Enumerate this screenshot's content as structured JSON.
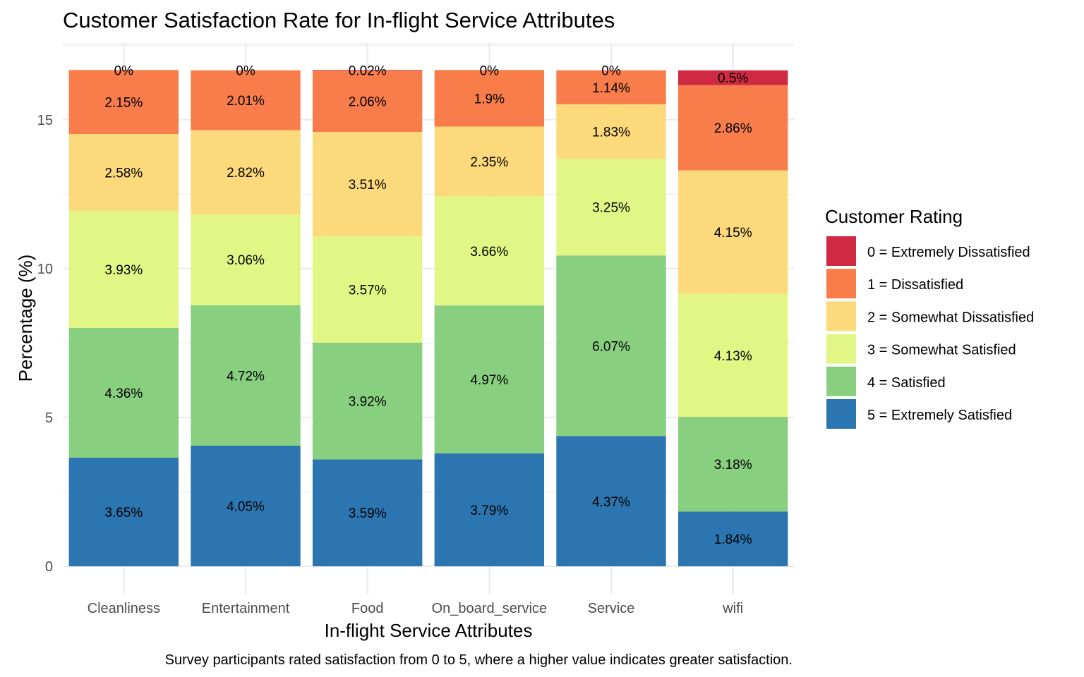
{
  "chart_data": {
    "type": "bar",
    "stacked": true,
    "title": "Customer Satisfaction Rate for In-flight Service Attributes",
    "xlabel": "In-flight Service Attributes",
    "ylabel": "Percentage (%)",
    "caption": "Survey participants rated satisfaction from 0 to 5, where a higher value indicates greater satisfaction.",
    "ylim": [
      0,
      16.7
    ],
    "y_ticks": [
      0,
      5,
      10,
      15
    ],
    "grid": true,
    "legend": {
      "title": "Customer Rating",
      "position": "right"
    },
    "categories": [
      "Cleanliness",
      "Entertainment",
      "Food",
      "On_board_service",
      "Service",
      "wifi"
    ],
    "series": [
      {
        "name": "5 = Extremely Satisfied",
        "color": "#2B75B0",
        "values": [
          3.65,
          4.05,
          3.59,
          3.79,
          4.37,
          1.84
        ],
        "labels": [
          "3.65%",
          "4.05%",
          "3.59%",
          "3.79%",
          "4.37%",
          "1.84%"
        ]
      },
      {
        "name": "4 = Satisfied",
        "color": "#88CF80",
        "values": [
          4.36,
          4.72,
          3.92,
          4.97,
          6.07,
          3.18
        ],
        "labels": [
          "4.36%",
          "4.72%",
          "3.92%",
          "4.97%",
          "6.07%",
          "3.18%"
        ]
      },
      {
        "name": "3 = Somewhat Satisfied",
        "color": "#E2F685",
        "values": [
          3.93,
          3.06,
          3.57,
          3.66,
          3.25,
          4.13
        ],
        "labels": [
          "3.93%",
          "3.06%",
          "3.57%",
          "3.66%",
          "3.25%",
          "4.13%"
        ]
      },
      {
        "name": "2 = Somewhat Dissatisfied",
        "color": "#FCD97B",
        "values": [
          2.58,
          2.82,
          3.51,
          2.35,
          1.83,
          4.15
        ],
        "labels": [
          "2.58%",
          "2.82%",
          "3.51%",
          "2.35%",
          "1.83%",
          "4.15%"
        ]
      },
      {
        "name": "1 = Dissatisfied",
        "color": "#F87D4B",
        "values": [
          2.15,
          2.01,
          2.06,
          1.9,
          1.14,
          2.86
        ],
        "labels": [
          "2.15%",
          "2.01%",
          "2.06%",
          "1.9%",
          "1.14%",
          "2.86%"
        ]
      },
      {
        "name": "0 = Extremely Dissatisfied",
        "color": "#D02943",
        "values": [
          0,
          0,
          0.02,
          0,
          0,
          0.5
        ],
        "labels": [
          "0%",
          "0%",
          "0.02%",
          "0%",
          "0%",
          "0.5%"
        ]
      }
    ]
  }
}
